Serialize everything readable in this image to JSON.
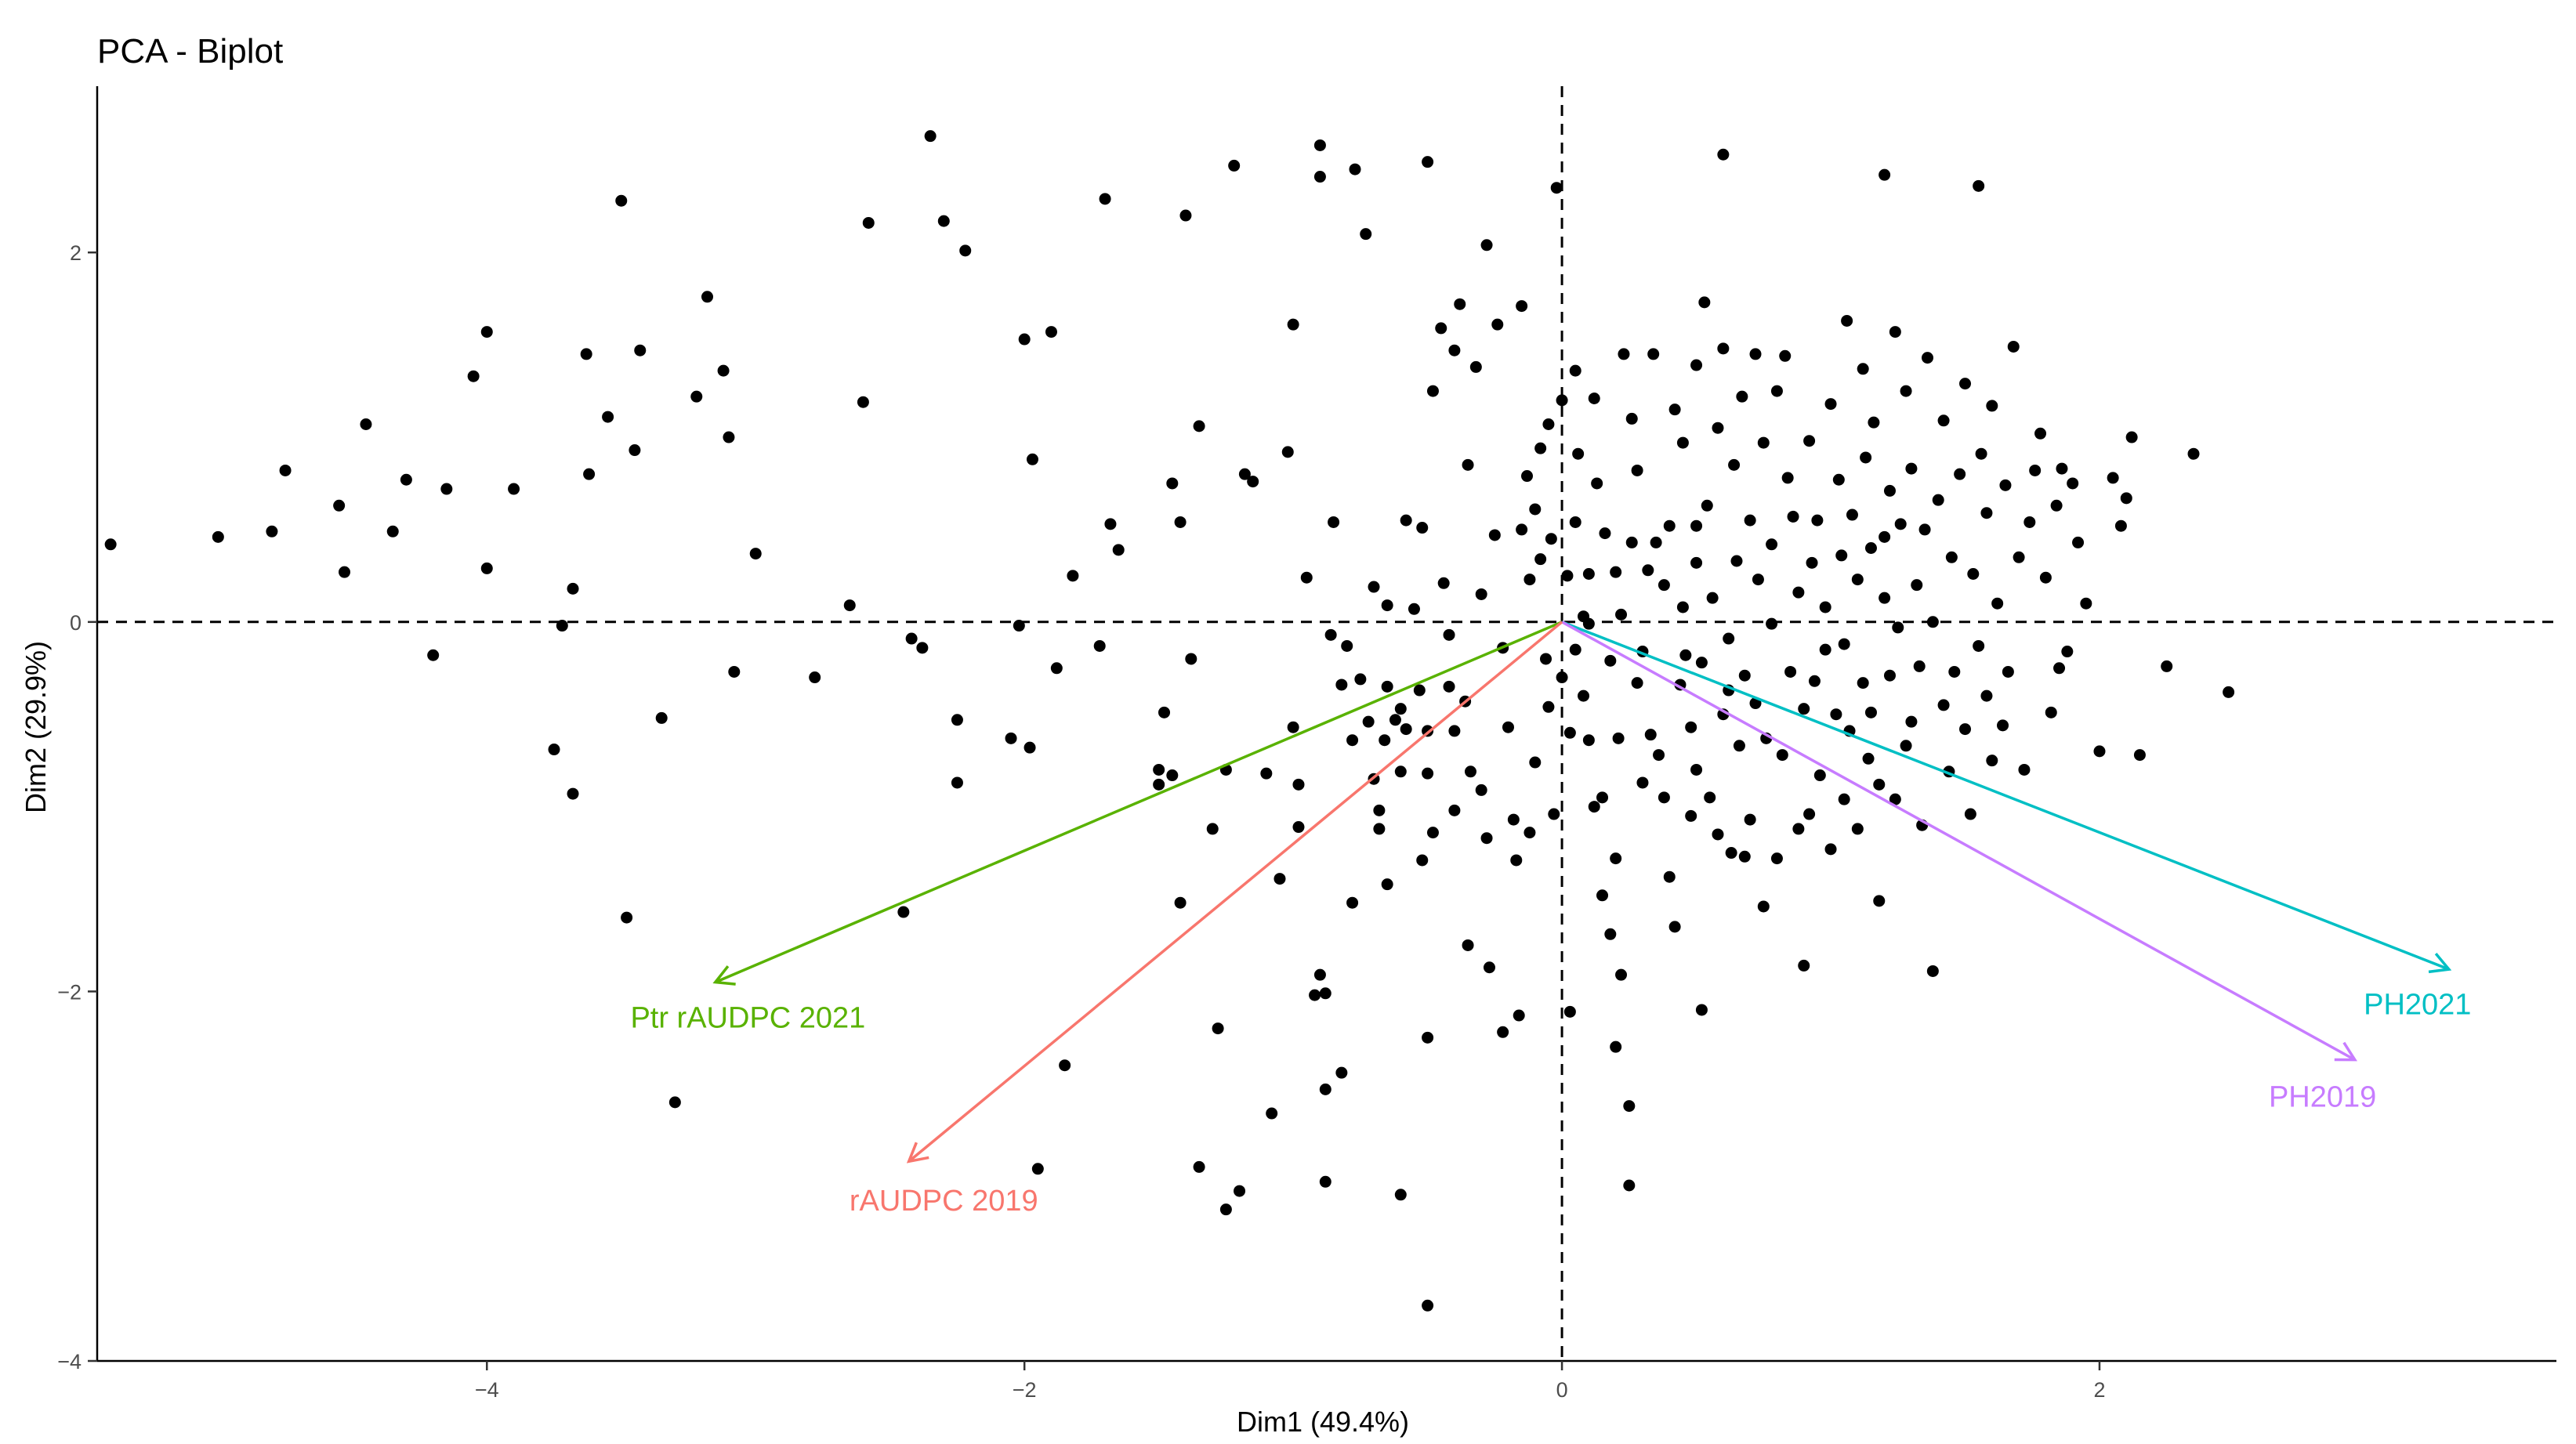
{
  "chart_data": {
    "type": "scatter",
    "title": "PCA - Biplot",
    "xlabel": "Dim1 (49.4%)",
    "ylabel": "Dim2 (29.9%)",
    "xlim": [
      -5.45,
      3.7
    ],
    "ylim": [
      -4.0,
      2.9
    ],
    "xticks": [
      -4,
      -2,
      0,
      2
    ],
    "yticks": [
      -4,
      -2,
      0,
      2
    ],
    "xtick_labels": [
      "−4",
      "−2",
      "0",
      "2"
    ],
    "ytick_labels": [
      "−4",
      "−2",
      "0",
      "2"
    ],
    "grid": false,
    "reference_lines": {
      "x": 0,
      "y": 0,
      "style": "dashed"
    },
    "point_color": "#000000",
    "points": [
      [
        -5.4,
        0.42
      ],
      [
        -5.0,
        0.46
      ],
      [
        -4.8,
        0.49
      ],
      [
        -4.75,
        0.82
      ],
      [
        -4.55,
        0.63
      ],
      [
        -4.53,
        0.27
      ],
      [
        -4.45,
        1.07
      ],
      [
        -4.35,
        0.49
      ],
      [
        -4.3,
        0.77
      ],
      [
        -4.2,
        -0.18
      ],
      [
        -4.15,
        0.72
      ],
      [
        -4.05,
        1.33
      ],
      [
        -4.0,
        1.57
      ],
      [
        -4.0,
        0.29
      ],
      [
        -3.9,
        0.72
      ],
      [
        -3.75,
        -0.69
      ],
      [
        -3.72,
        -0.02
      ],
      [
        -3.68,
        0.18
      ],
      [
        -3.68,
        -0.93
      ],
      [
        -3.63,
        1.45
      ],
      [
        -3.62,
        0.8
      ],
      [
        -3.55,
        1.11
      ],
      [
        -3.5,
        2.28
      ],
      [
        -3.48,
        -1.6
      ],
      [
        -3.45,
        0.93
      ],
      [
        -3.43,
        1.47
      ],
      [
        -3.35,
        -0.52
      ],
      [
        -3.3,
        -2.6
      ],
      [
        -3.22,
        1.22
      ],
      [
        -3.18,
        1.76
      ],
      [
        -3.12,
        1.36
      ],
      [
        -3.1,
        1.0
      ],
      [
        -3.08,
        -0.27
      ],
      [
        -3.0,
        0.37
      ],
      [
        -2.78,
        -0.3
      ],
      [
        -2.65,
        0.09
      ],
      [
        -2.6,
        1.19
      ],
      [
        -2.58,
        2.16
      ],
      [
        -2.45,
        -1.57
      ],
      [
        -2.42,
        -0.09
      ],
      [
        -2.38,
        -0.14
      ],
      [
        -2.35,
        2.63
      ],
      [
        -2.3,
        2.17
      ],
      [
        -2.25,
        -0.53
      ],
      [
        -2.25,
        -0.87
      ],
      [
        -2.22,
        2.01
      ],
      [
        -2.05,
        -0.63
      ],
      [
        -2.02,
        -0.02
      ],
      [
        -2.0,
        1.53
      ],
      [
        -1.98,
        -0.68
      ],
      [
        -1.97,
        0.88
      ],
      [
        -1.95,
        -2.96
      ],
      [
        -1.9,
        1.57
      ],
      [
        -1.88,
        -0.25
      ],
      [
        -1.85,
        -2.4
      ],
      [
        -1.82,
        0.25
      ],
      [
        -1.72,
        -0.13
      ],
      [
        -1.7,
        2.29
      ],
      [
        -1.68,
        0.53
      ],
      [
        -1.65,
        0.39
      ],
      [
        -1.5,
        -0.8
      ],
      [
        -1.5,
        -0.88
      ],
      [
        -1.48,
        -0.49
      ],
      [
        -1.45,
        -0.83
      ],
      [
        -1.45,
        0.75
      ],
      [
        -1.42,
        0.54
      ],
      [
        -1.42,
        -1.52
      ],
      [
        -1.4,
        2.2
      ],
      [
        -1.38,
        -0.2
      ],
      [
        -1.35,
        -2.95
      ],
      [
        -1.35,
        1.06
      ],
      [
        -1.3,
        -1.12
      ],
      [
        -1.28,
        -2.2
      ],
      [
        -1.25,
        -3.18
      ],
      [
        -1.25,
        -0.8
      ],
      [
        -1.22,
        2.47
      ],
      [
        -1.2,
        -3.08
      ],
      [
        -1.18,
        0.8
      ],
      [
        -1.15,
        0.76
      ],
      [
        -1.1,
        -0.82
      ],
      [
        -1.08,
        -2.66
      ],
      [
        -1.05,
        -1.39
      ],
      [
        -1.02,
        0.92
      ],
      [
        -1.0,
        -0.57
      ],
      [
        -1.0,
        1.61
      ],
      [
        -0.98,
        -1.11
      ],
      [
        -0.98,
        -0.88
      ],
      [
        -0.95,
        0.24
      ],
      [
        -0.92,
        -2.02
      ],
      [
        -0.9,
        2.58
      ],
      [
        -0.9,
        2.41
      ],
      [
        -0.9,
        -1.91
      ],
      [
        -0.88,
        -2.01
      ],
      [
        -0.88,
        -2.53
      ],
      [
        -0.88,
        -3.03
      ],
      [
        -0.86,
        -0.07
      ],
      [
        -0.85,
        0.54
      ],
      [
        -0.82,
        -0.34
      ],
      [
        -0.82,
        -2.44
      ],
      [
        -0.8,
        -0.13
      ],
      [
        -0.78,
        -0.64
      ],
      [
        -0.78,
        -1.52
      ],
      [
        -0.77,
        2.45
      ],
      [
        -0.75,
        -0.31
      ],
      [
        -0.73,
        2.1
      ],
      [
        -0.72,
        -0.54
      ],
      [
        -0.7,
        -0.85
      ],
      [
        -0.7,
        0.19
      ],
      [
        -0.68,
        -1.02
      ],
      [
        -0.68,
        -1.12
      ],
      [
        -0.66,
        -0.64
      ],
      [
        -0.65,
        -0.35
      ],
      [
        -0.65,
        -1.42
      ],
      [
        -0.65,
        0.09
      ],
      [
        -0.62,
        -0.53
      ],
      [
        -0.6,
        -0.81
      ],
      [
        -0.6,
        -3.1
      ],
      [
        -0.6,
        -0.47
      ],
      [
        -0.58,
        -0.58
      ],
      [
        -0.58,
        0.55
      ],
      [
        -0.55,
        0.07
      ],
      [
        -0.53,
        -0.37
      ],
      [
        -0.52,
        -1.29
      ],
      [
        -0.52,
        0.51
      ],
      [
        -0.5,
        -0.82
      ],
      [
        -0.5,
        -0.59
      ],
      [
        -0.5,
        -2.25
      ],
      [
        -0.5,
        2.49
      ],
      [
        -0.5,
        -3.7
      ],
      [
        -0.48,
        -1.14
      ],
      [
        -0.48,
        1.25
      ],
      [
        -0.45,
        1.59
      ],
      [
        -0.44,
        0.21
      ],
      [
        -0.42,
        -0.07
      ],
      [
        -0.42,
        -0.35
      ],
      [
        -0.4,
        -0.59
      ],
      [
        -0.4,
        -1.02
      ],
      [
        -0.4,
        1.47
      ],
      [
        -0.38,
        1.72
      ],
      [
        -0.36,
        -0.43
      ],
      [
        -0.35,
        -1.75
      ],
      [
        -0.35,
        0.85
      ],
      [
        -0.34,
        -0.81
      ],
      [
        -0.32,
        1.38
      ],
      [
        -0.3,
        -0.91
      ],
      [
        -0.3,
        0.15
      ],
      [
        -0.28,
        -1.17
      ],
      [
        -0.28,
        2.04
      ],
      [
        -0.27,
        -1.87
      ],
      [
        -0.25,
        0.47
      ],
      [
        -0.24,
        1.61
      ],
      [
        -0.22,
        -0.14
      ],
      [
        -0.22,
        -2.22
      ],
      [
        -0.2,
        -0.57
      ],
      [
        -0.18,
        -1.07
      ],
      [
        -0.17,
        -1.29
      ],
      [
        -0.16,
        -2.13
      ],
      [
        -0.15,
        1.71
      ],
      [
        -0.15,
        0.5
      ],
      [
        -0.13,
        0.79
      ],
      [
        -0.12,
        -1.14
      ],
      [
        -0.12,
        0.23
      ],
      [
        -0.1,
        -0.76
      ],
      [
        -0.1,
        0.61
      ],
      [
        -0.08,
        0.94
      ],
      [
        -0.08,
        0.34
      ],
      [
        -0.06,
        -0.2
      ],
      [
        -0.05,
        -0.46
      ],
      [
        -0.05,
        1.07
      ],
      [
        -0.04,
        0.45
      ],
      [
        -0.03,
        -1.04
      ],
      [
        -0.02,
        2.35
      ],
      [
        0.0,
        -0.3
      ],
      [
        0.0,
        1.2
      ],
      [
        0.02,
        0.25
      ],
      [
        0.03,
        -0.6
      ],
      [
        0.03,
        -2.11
      ],
      [
        0.05,
        0.54
      ],
      [
        0.05,
        1.36
      ],
      [
        0.05,
        -0.15
      ],
      [
        0.06,
        0.91
      ],
      [
        0.08,
        -0.4
      ],
      [
        0.08,
        0.03
      ],
      [
        0.1,
        -0.01
      ],
      [
        0.1,
        0.26
      ],
      [
        0.1,
        -0.64
      ],
      [
        0.12,
        -1.0
      ],
      [
        0.12,
        1.21
      ],
      [
        0.13,
        0.75
      ],
      [
        0.15,
        -1.48
      ],
      [
        0.15,
        -0.95
      ],
      [
        0.16,
        0.48
      ],
      [
        0.18,
        -0.21
      ],
      [
        0.18,
        -1.69
      ],
      [
        0.2,
        -2.3
      ],
      [
        0.2,
        -1.28
      ],
      [
        0.2,
        0.27
      ],
      [
        0.21,
        -0.63
      ],
      [
        0.22,
        0.04
      ],
      [
        0.22,
        -1.91
      ],
      [
        0.23,
        1.45
      ],
      [
        0.25,
        -2.62
      ],
      [
        0.25,
        -3.05
      ],
      [
        0.26,
        0.43
      ],
      [
        0.26,
        1.1
      ],
      [
        0.28,
        -0.33
      ],
      [
        0.28,
        0.82
      ],
      [
        0.3,
        -0.87
      ],
      [
        0.3,
        -0.16
      ],
      [
        0.32,
        0.28
      ],
      [
        0.33,
        -0.61
      ],
      [
        0.34,
        1.45
      ],
      [
        0.35,
        0.43
      ],
      [
        0.36,
        -0.72
      ],
      [
        0.38,
        -0.95
      ],
      [
        0.38,
        0.2
      ],
      [
        0.4,
        -1.38
      ],
      [
        0.4,
        0.52
      ],
      [
        0.42,
        1.15
      ],
      [
        0.42,
        -1.65
      ],
      [
        0.44,
        -0.34
      ],
      [
        0.45,
        0.08
      ],
      [
        0.45,
        0.97
      ],
      [
        0.46,
        -0.18
      ],
      [
        0.48,
        -0.57
      ],
      [
        0.48,
        -1.05
      ],
      [
        0.5,
        0.32
      ],
      [
        0.5,
        -0.8
      ],
      [
        0.5,
        0.52
      ],
      [
        0.5,
        1.39
      ],
      [
        0.52,
        -2.1
      ],
      [
        0.52,
        -0.22
      ],
      [
        0.53,
        1.73
      ],
      [
        0.54,
        0.63
      ],
      [
        0.55,
        -0.95
      ],
      [
        0.56,
        0.13
      ],
      [
        0.58,
        1.05
      ],
      [
        0.58,
        -1.15
      ],
      [
        0.6,
        -0.5
      ],
      [
        0.6,
        1.48
      ],
      [
        0.6,
        2.53
      ],
      [
        0.62,
        -0.37
      ],
      [
        0.62,
        -0.09
      ],
      [
        0.63,
        -1.25
      ],
      [
        0.64,
        0.85
      ],
      [
        0.65,
        0.33
      ],
      [
        0.66,
        -0.67
      ],
      [
        0.67,
        1.22
      ],
      [
        0.68,
        -1.27
      ],
      [
        0.68,
        -0.29
      ],
      [
        0.7,
        0.55
      ],
      [
        0.7,
        -1.07
      ],
      [
        0.72,
        1.45
      ],
      [
        0.72,
        -0.44
      ],
      [
        0.73,
        0.23
      ],
      [
        0.75,
        -1.54
      ],
      [
        0.75,
        0.97
      ],
      [
        0.76,
        -0.63
      ],
      [
        0.78,
        0.42
      ],
      [
        0.78,
        -0.01
      ],
      [
        0.8,
        1.25
      ],
      [
        0.8,
        -1.28
      ],
      [
        0.82,
        -0.72
      ],
      [
        0.83,
        1.44
      ],
      [
        0.84,
        0.78
      ],
      [
        0.85,
        -0.27
      ],
      [
        0.86,
        0.57
      ],
      [
        0.88,
        -1.12
      ],
      [
        0.88,
        0.16
      ],
      [
        0.9,
        -1.86
      ],
      [
        0.9,
        -0.47
      ],
      [
        0.92,
        -1.04
      ],
      [
        0.92,
        0.98
      ],
      [
        0.93,
        0.32
      ],
      [
        0.94,
        -0.32
      ],
      [
        0.95,
        0.55
      ],
      [
        0.96,
        -0.83
      ],
      [
        0.98,
        -0.15
      ],
      [
        0.98,
        0.08
      ],
      [
        1.0,
        1.18
      ],
      [
        1.0,
        -1.23
      ],
      [
        1.02,
        -0.5
      ],
      [
        1.03,
        0.77
      ],
      [
        1.04,
        0.36
      ],
      [
        1.05,
        -0.12
      ],
      [
        1.05,
        -0.96
      ],
      [
        1.06,
        1.63
      ],
      [
        1.07,
        -0.59
      ],
      [
        1.08,
        0.58
      ],
      [
        1.1,
        -1.12
      ],
      [
        1.1,
        0.23
      ],
      [
        1.12,
        -0.33
      ],
      [
        1.12,
        1.37
      ],
      [
        1.13,
        0.89
      ],
      [
        1.14,
        -0.74
      ],
      [
        1.15,
        0.4
      ],
      [
        1.15,
        -0.49
      ],
      [
        1.16,
        1.08
      ],
      [
        1.18,
        -1.51
      ],
      [
        1.18,
        -0.88
      ],
      [
        1.2,
        0.13
      ],
      [
        1.2,
        0.46
      ],
      [
        1.2,
        2.42
      ],
      [
        1.22,
        -0.29
      ],
      [
        1.22,
        0.71
      ],
      [
        1.24,
        -0.96
      ],
      [
        1.24,
        1.57
      ],
      [
        1.25,
        -0.03
      ],
      [
        1.26,
        0.53
      ],
      [
        1.28,
        -0.67
      ],
      [
        1.28,
        1.25
      ],
      [
        1.3,
        -0.54
      ],
      [
        1.3,
        0.83
      ],
      [
        1.32,
        0.2
      ],
      [
        1.33,
        -0.24
      ],
      [
        1.34,
        -1.1
      ],
      [
        1.35,
        0.5
      ],
      [
        1.36,
        1.43
      ],
      [
        1.38,
        -1.89
      ],
      [
        1.38,
        0.0
      ],
      [
        1.4,
        0.66
      ],
      [
        1.42,
        -0.45
      ],
      [
        1.42,
        1.09
      ],
      [
        1.44,
        -0.81
      ],
      [
        1.45,
        0.35
      ],
      [
        1.46,
        -0.27
      ],
      [
        1.48,
        0.8
      ],
      [
        1.5,
        -0.58
      ],
      [
        1.5,
        1.29
      ],
      [
        1.52,
        -1.04
      ],
      [
        1.53,
        0.26
      ],
      [
        1.55,
        2.36
      ],
      [
        1.55,
        -0.13
      ],
      [
        1.56,
        0.91
      ],
      [
        1.58,
        -0.4
      ],
      [
        1.58,
        0.59
      ],
      [
        1.6,
        1.17
      ],
      [
        1.6,
        -0.75
      ],
      [
        1.62,
        0.1
      ],
      [
        1.64,
        -0.56
      ],
      [
        1.65,
        0.74
      ],
      [
        1.66,
        -0.27
      ],
      [
        1.68,
        1.49
      ],
      [
        1.7,
        0.35
      ],
      [
        1.72,
        -0.8
      ],
      [
        1.74,
        0.54
      ],
      [
        1.76,
        0.82
      ],
      [
        1.78,
        1.02
      ],
      [
        1.8,
        0.24
      ],
      [
        1.82,
        -0.49
      ],
      [
        1.84,
        0.63
      ],
      [
        1.85,
        -0.25
      ],
      [
        1.86,
        0.83
      ],
      [
        1.88,
        -0.16
      ],
      [
        1.9,
        0.75
      ],
      [
        1.92,
        0.43
      ],
      [
        1.95,
        0.1
      ],
      [
        2.0,
        -0.7
      ],
      [
        2.05,
        0.78
      ],
      [
        2.08,
        0.52
      ],
      [
        2.1,
        0.67
      ],
      [
        2.12,
        1.0
      ],
      [
        2.15,
        -0.72
      ],
      [
        2.25,
        -0.24
      ],
      [
        2.35,
        0.91
      ],
      [
        2.48,
        -0.38
      ]
    ],
    "variables": [
      {
        "name": "PH2021",
        "x": 3.3,
        "y": -1.88,
        "color": "#00BFC4"
      },
      {
        "name": "PH2019",
        "x": 2.95,
        "y": -2.37,
        "color": "#C77CFF"
      },
      {
        "name": "Ptr rAUDPC 2021",
        "x": -3.15,
        "y": -1.95,
        "color": "#59B200"
      },
      {
        "name": "rAUDPC 2019",
        "x": -2.43,
        "y": -2.92,
        "color": "#F8766D"
      }
    ]
  }
}
